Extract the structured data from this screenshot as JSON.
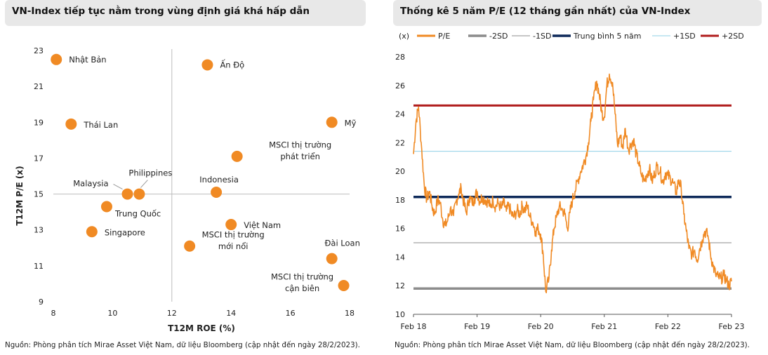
{
  "left": {
    "title": "VN-Index tiếp tục nằm trong vùng định giá khá hấp dẫn",
    "source": "Nguồn: Phòng phân tích Mirae Asset Việt Nam, dữ liệu Bloomberg (cập nhật đến ngày 28/2/2023)."
  },
  "right": {
    "title": "Thống kê 5 năm P/E (12 tháng gần nhất) của VN-Index",
    "source": "Nguồn: Phòng phân tích Mirae Asset Việt Nam, dữ liệu Bloomberg (cập nhật đến ngày 28/2/2023)."
  },
  "chart_data": [
    {
      "type": "scatter",
      "xlabel": "T12M ROE (%)",
      "ylabel": "T12M P/E (x)",
      "xlim": [
        8,
        18
      ],
      "ylim": [
        9,
        23
      ],
      "xticks": [
        8,
        10,
        12,
        14,
        16,
        18
      ],
      "yticks": [
        9,
        11,
        13,
        15,
        17,
        19,
        21,
        23
      ],
      "reference_lines": {
        "x": 12,
        "y": 15
      },
      "marker_color": "#f08a24",
      "points": [
        {
          "label": "Nhật Bản",
          "x": 8.1,
          "y": 22.5
        },
        {
          "label": "Ấn Độ",
          "x": 13.2,
          "y": 22.2
        },
        {
          "label": "Thái Lan",
          "x": 8.6,
          "y": 18.9
        },
        {
          "label": "Mỹ",
          "x": 17.4,
          "y": 19.0
        },
        {
          "label": "MSCI thị trường|phát triển",
          "x": 14.2,
          "y": 17.1
        },
        {
          "label": "Philippines",
          "x": 10.9,
          "y": 15.0
        },
        {
          "label": "Malaysia",
          "x": 10.5,
          "y": 15.0
        },
        {
          "label": "Indonesia",
          "x": 13.5,
          "y": 15.1
        },
        {
          "label": "Trung Quốc",
          "x": 9.8,
          "y": 14.3
        },
        {
          "label": "Singapore",
          "x": 9.3,
          "y": 12.9
        },
        {
          "label": "Việt Nam",
          "x": 14.0,
          "y": 13.3
        },
        {
          "label": "MSCI thị trường|mới nổi",
          "x": 12.6,
          "y": 12.1
        },
        {
          "label": "Đài Loan",
          "x": 17.4,
          "y": 11.4
        },
        {
          "label": "MSCI thị trường|cận biên",
          "x": 17.8,
          "y": 9.9
        }
      ]
    },
    {
      "type": "line",
      "unit_label": "(x)",
      "ylim": [
        10,
        28
      ],
      "yticks": [
        10,
        12,
        14,
        16,
        18,
        20,
        22,
        24,
        26,
        28
      ],
      "xlim": [
        2018.0,
        2023.0
      ],
      "xticks": [
        {
          "v": 2018.0,
          "label": "Feb 18"
        },
        {
          "v": 2019.0,
          "label": "Feb 19"
        },
        {
          "v": 2020.0,
          "label": "Feb 20"
        },
        {
          "v": 2021.0,
          "label": "Feb 21"
        },
        {
          "v": 2022.0,
          "label": "Feb 22"
        },
        {
          "v": 2023.0,
          "label": "Feb 23"
        }
      ],
      "legend": [
        {
          "name": "P/E",
          "color": "#f08a24"
        },
        {
          "name": "-2SD",
          "color": "#8c8c8c"
        },
        {
          "name": "-1SD",
          "color": "#8c8c8c"
        },
        {
          "name": "Trung bình 5 năm",
          "color": "#0e2a5a"
        },
        {
          "name": "+1SD",
          "color": "#8fd0e6"
        },
        {
          "name": "+2SD",
          "color": "#b01c1c"
        }
      ],
      "levels": {
        "-2SD": 11.8,
        "-1SD": 15.0,
        "Trung bình 5 năm": 18.2,
        "+1SD": 21.4,
        "+2SD": 24.6
      },
      "series": [
        {
          "name": "P/E",
          "x": [
            2018.0,
            2018.04,
            2018.08,
            2018.13,
            2018.17,
            2018.21,
            2018.25,
            2018.29,
            2018.33,
            2018.38,
            2018.42,
            2018.46,
            2018.5,
            2018.54,
            2018.58,
            2018.63,
            2018.67,
            2018.71,
            2018.75,
            2018.79,
            2018.83,
            2018.88,
            2018.92,
            2018.96,
            2019.0,
            2019.04,
            2019.08,
            2019.13,
            2019.17,
            2019.21,
            2019.25,
            2019.29,
            2019.33,
            2019.38,
            2019.42,
            2019.46,
            2019.5,
            2019.54,
            2019.58,
            2019.63,
            2019.67,
            2019.71,
            2019.75,
            2019.79,
            2019.83,
            2019.88,
            2019.92,
            2019.96,
            2020.0,
            2020.04,
            2020.08,
            2020.13,
            2020.17,
            2020.21,
            2020.25,
            2020.29,
            2020.33,
            2020.38,
            2020.42,
            2020.46,
            2020.5,
            2020.54,
            2020.58,
            2020.63,
            2020.67,
            2020.71,
            2020.75,
            2020.79,
            2020.83,
            2020.88,
            2020.92,
            2020.96,
            2021.0,
            2021.04,
            2021.08,
            2021.13,
            2021.17,
            2021.21,
            2021.25,
            2021.29,
            2021.33,
            2021.38,
            2021.42,
            2021.46,
            2021.5,
            2021.54,
            2021.58,
            2021.63,
            2021.67,
            2021.71,
            2021.75,
            2021.79,
            2021.83,
            2021.88,
            2021.92,
            2021.96,
            2022.0,
            2022.04,
            2022.08,
            2022.13,
            2022.17,
            2022.21,
            2022.25,
            2022.29,
            2022.33,
            2022.38,
            2022.42,
            2022.46,
            2022.5,
            2022.54,
            2022.58,
            2022.63,
            2022.67,
            2022.71,
            2022.75,
            2022.79,
            2022.83,
            2022.88,
            2022.92,
            2022.96,
            2023.0
          ],
          "values": [
            21.2,
            23.5,
            24.5,
            21.5,
            19.0,
            18.0,
            18.6,
            17.6,
            17.0,
            18.0,
            17.8,
            16.6,
            16.2,
            16.6,
            17.4,
            16.9,
            17.9,
            18.4,
            18.8,
            17.8,
            17.1,
            18.2,
            17.8,
            18.1,
            18.6,
            17.9,
            18.2,
            18.0,
            17.9,
            17.5,
            18.0,
            17.5,
            17.8,
            17.4,
            17.8,
            17.2,
            17.6,
            17.0,
            16.8,
            17.3,
            17.0,
            17.6,
            17.3,
            17.6,
            16.8,
            16.4,
            15.8,
            16.0,
            15.6,
            14.2,
            11.6,
            12.5,
            14.5,
            16.0,
            16.8,
            17.5,
            17.4,
            17.0,
            16.0,
            17.1,
            18.0,
            18.6,
            19.3,
            20.0,
            20.5,
            21.0,
            22.0,
            23.5,
            25.0,
            26.3,
            25.4,
            24.1,
            23.8,
            26.0,
            26.8,
            26.2,
            24.0,
            21.8,
            22.5,
            21.6,
            23.0,
            21.5,
            21.9,
            22.2,
            21.2,
            20.6,
            19.8,
            19.3,
            19.8,
            20.2,
            19.3,
            19.8,
            20.4,
            20.0,
            19.2,
            19.9,
            19.7,
            19.5,
            19.2,
            18.5,
            19.4,
            18.8,
            17.0,
            15.8,
            14.6,
            14.2,
            14.5,
            13.8,
            14.6,
            15.2,
            15.8,
            15.5,
            14.2,
            13.4,
            12.8,
            12.6,
            12.5,
            12.7,
            12.4,
            12.0,
            12.3
          ]
        }
      ]
    }
  ]
}
